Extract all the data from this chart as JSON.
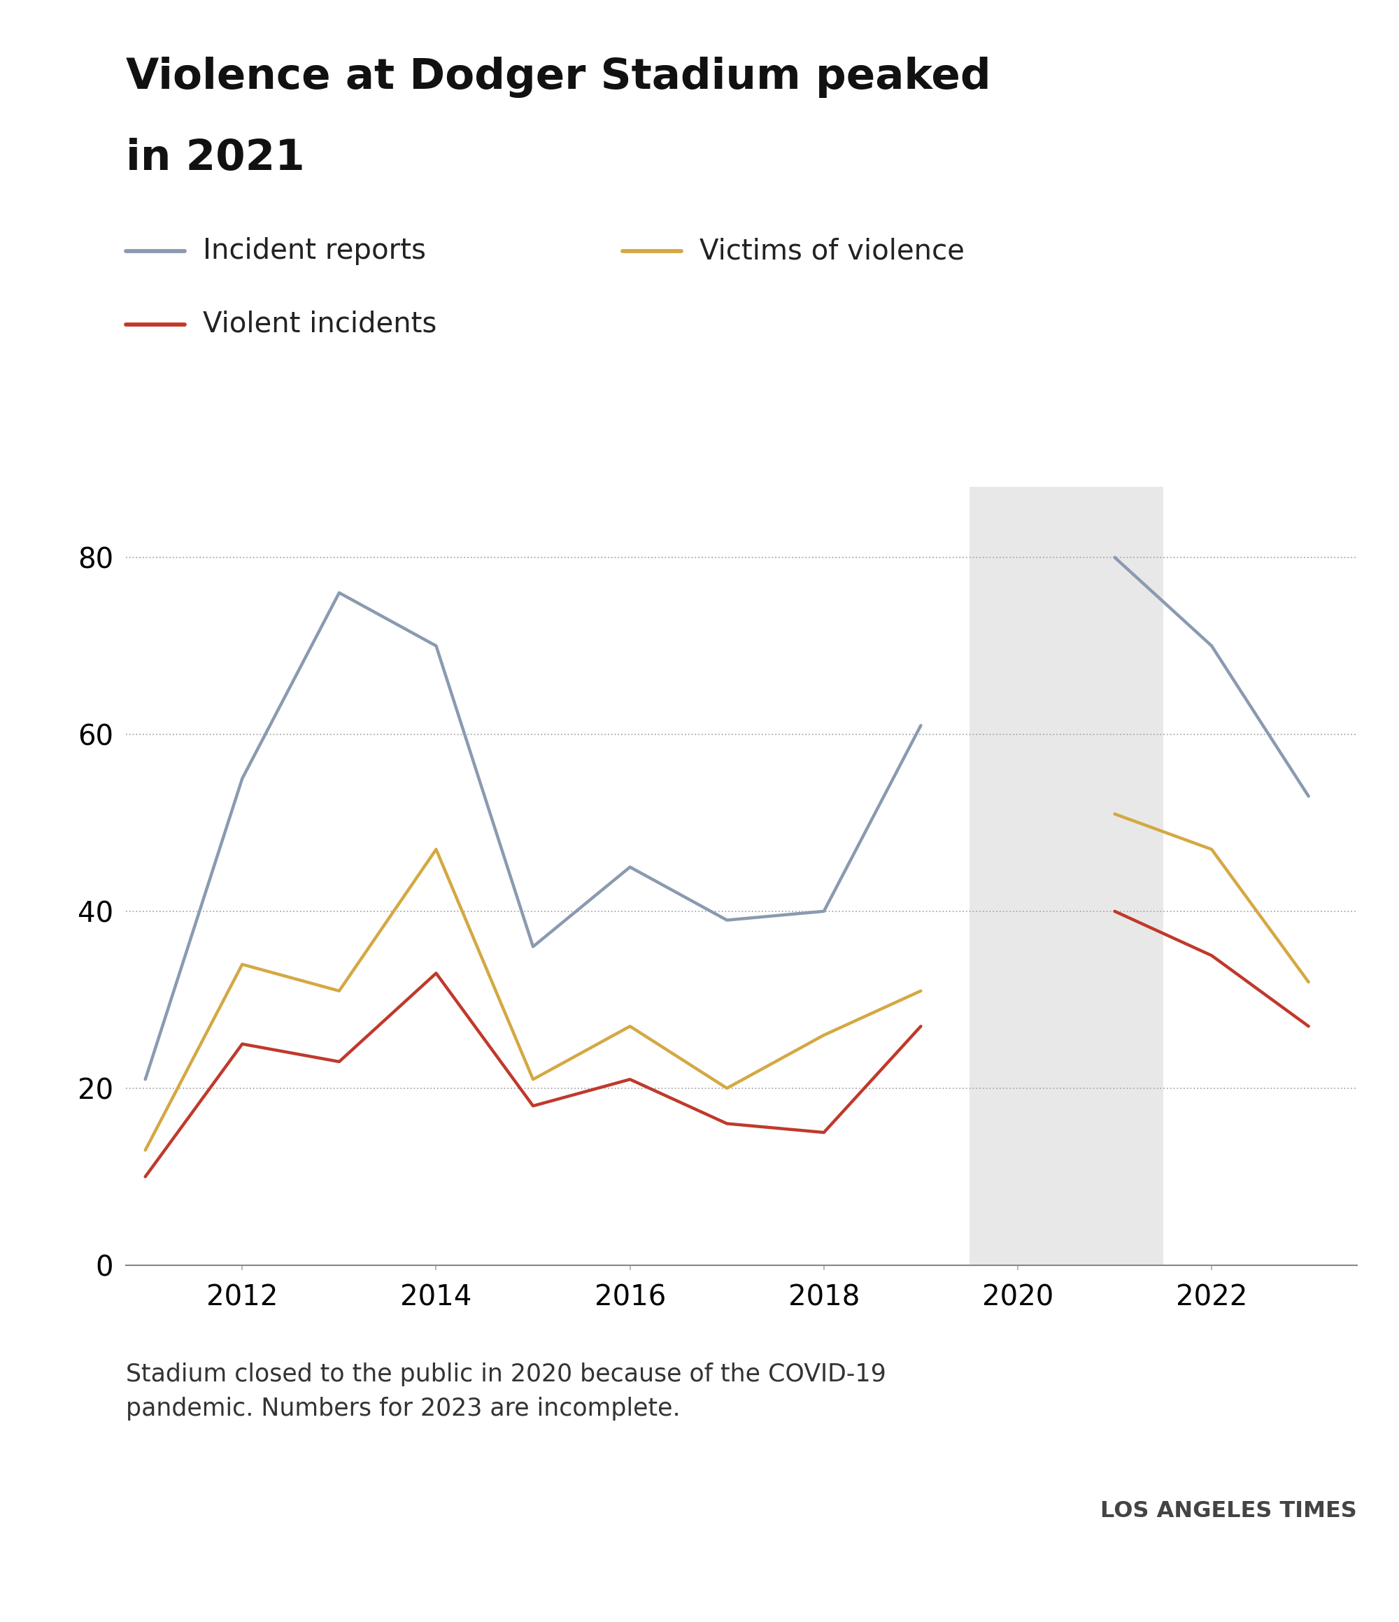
{
  "title_line1": "Violence at Dodger Stadium peaked",
  "title_line2": "in 2021",
  "years": [
    2011,
    2012,
    2013,
    2014,
    2015,
    2016,
    2017,
    2018,
    2019,
    2020,
    2021,
    2022,
    2023
  ],
  "incident_reports": [
    21,
    55,
    76,
    70,
    36,
    45,
    39,
    40,
    61,
    null,
    80,
    70,
    53
  ],
  "victims_of_violence": [
    13,
    34,
    31,
    47,
    21,
    27,
    20,
    26,
    31,
    null,
    51,
    47,
    32
  ],
  "violent_incidents": [
    10,
    25,
    23,
    33,
    18,
    21,
    16,
    15,
    27,
    null,
    40,
    35,
    27
  ],
  "color_incident_reports": "#8a9ab0",
  "color_victims_of_violence": "#d4a843",
  "color_violent_incidents": "#c0392b",
  "shaded_xmin": 2019.5,
  "shaded_xmax": 2021.5,
  "shaded_color": "#e8e8e8",
  "yticks": [
    0,
    20,
    40,
    60,
    80
  ],
  "xticks": [
    2012,
    2014,
    2016,
    2018,
    2020,
    2022
  ],
  "ylim_min": 0,
  "ylim_max": 88,
  "xlim_min": 2010.8,
  "xlim_max": 2023.5,
  "label_incident_reports": "Incident reports",
  "label_victims": "Victims of violence",
  "label_violent_incidents": "Violent incidents",
  "footnote_line1": "Stadium closed to the public in 2020 because of the COVID-19",
  "footnote_line2": "pandemic. Numbers for 2023 are incomplete.",
  "source": "LOS ANGELES TIMES",
  "line_width": 3.2,
  "bg_color": "#ffffff",
  "title_fontsize": 44,
  "legend_fontsize": 29,
  "tick_fontsize": 29,
  "footnote_fontsize": 25,
  "source_fontsize": 23
}
